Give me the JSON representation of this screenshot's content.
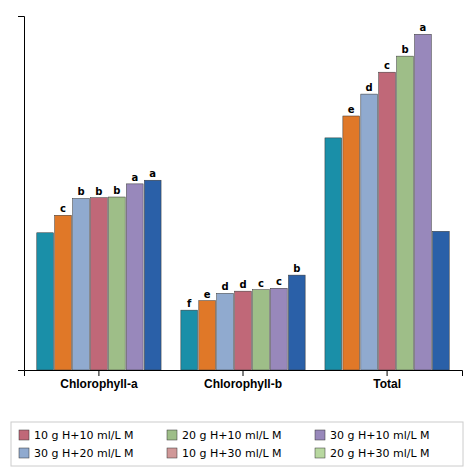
{
  "chart_data": {
    "type": "bar",
    "categories": [
      "Chlorophyll-a",
      "Chlorophyll-b",
      "Total"
    ],
    "series": [
      {
        "color": "#1A8FA8",
        "values": [
          1.88,
          0.82,
          3.18
        ],
        "annotations": [
          null,
          "f",
          null
        ]
      },
      {
        "color": "#E07828",
        "values": [
          2.12,
          0.95,
          3.48
        ],
        "annotations": [
          "c",
          "e",
          "e"
        ]
      },
      {
        "color": "#90AACF",
        "values": [
          2.35,
          1.05,
          3.78
        ],
        "annotations": [
          "b",
          "d",
          "d"
        ]
      },
      {
        "color": "#C06878",
        "values": [
          2.36,
          1.08,
          4.08
        ],
        "annotations": [
          "b",
          "d",
          "c"
        ]
      },
      {
        "color": "#9EBE88",
        "values": [
          2.37,
          1.1,
          4.3
        ],
        "annotations": [
          "b",
          "c",
          "b"
        ]
      },
      {
        "color": "#9888BB",
        "values": [
          2.55,
          1.12,
          4.6
        ],
        "annotations": [
          "a",
          "c",
          "a"
        ]
      },
      {
        "color": "#2A60A8",
        "values": [
          2.6,
          1.3,
          1.9
        ],
        "annotations": [
          "a",
          "b",
          null
        ]
      }
    ],
    "legend_entries": [
      {
        "label": "10 g H+10 ml/L M",
        "color": "#C06878"
      },
      {
        "label": "20 g H+10 ml/L M",
        "color": "#9EBE88"
      },
      {
        "label": "30 g H+10 ml/L M",
        "color": "#9888BB"
      },
      {
        "label": "30 g H+20 ml/L M",
        "color": "#90AACF"
      },
      {
        "label": "10 g H+30 ml/L M",
        "color": "#D09898"
      },
      {
        "label": "20 g H+30 ml/L M",
        "color": "#B8D8A0"
      }
    ],
    "legend": "bottom",
    "ylim": [
      0,
      4.85
    ],
    "yticks": [],
    "tick_labels": "x"
  }
}
